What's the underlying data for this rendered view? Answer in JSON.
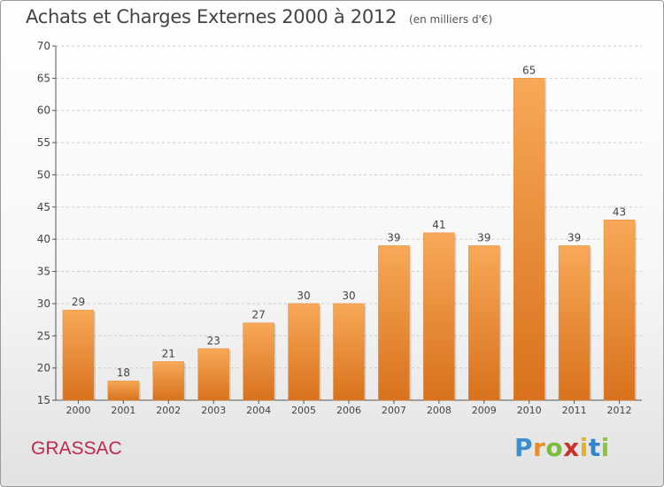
{
  "title": "Achats et Charges Externes 2000 à 2012",
  "unit": "(en milliers d'€)",
  "location": "GRASSAC",
  "logo": {
    "p": "P",
    "r": "r",
    "o": "o",
    "x": "x",
    "i1": "i",
    "t": "t",
    "i2": "i"
  },
  "colors": {
    "bar_top": "#f7a957",
    "bar_bottom": "#d9711c",
    "axis": "#555555",
    "grid": "#cccccc"
  },
  "chart_data": {
    "type": "bar",
    "categories": [
      "2000",
      "2001",
      "2002",
      "2003",
      "2004",
      "2005",
      "2006",
      "2007",
      "2008",
      "2009",
      "2010",
      "2011",
      "2012"
    ],
    "values": [
      29,
      18,
      21,
      23,
      27,
      30,
      30,
      39,
      41,
      39,
      65,
      39,
      43
    ],
    "ylim": [
      15,
      70
    ],
    "yticks": [
      15,
      20,
      25,
      30,
      35,
      40,
      45,
      50,
      55,
      60,
      65,
      70
    ],
    "grid": "horizontal, dashed",
    "legend": "none"
  }
}
